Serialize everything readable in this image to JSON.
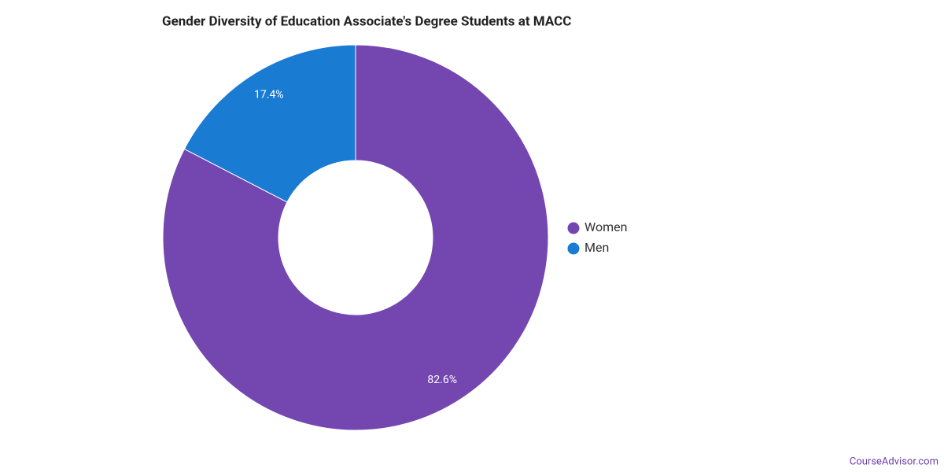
{
  "chart_data": {
    "type": "donut",
    "title": "Gender Diversity of Education Associate's Degree Students at MACC",
    "categories": [
      "Women",
      "Men"
    ],
    "values": [
      82.6,
      17.4
    ],
    "value_labels": [
      "82.6%",
      "17.4%"
    ],
    "colors": [
      "#7447b0",
      "#1a7bd3"
    ],
    "legend": "right",
    "source": "CourseAdvisor.com"
  }
}
